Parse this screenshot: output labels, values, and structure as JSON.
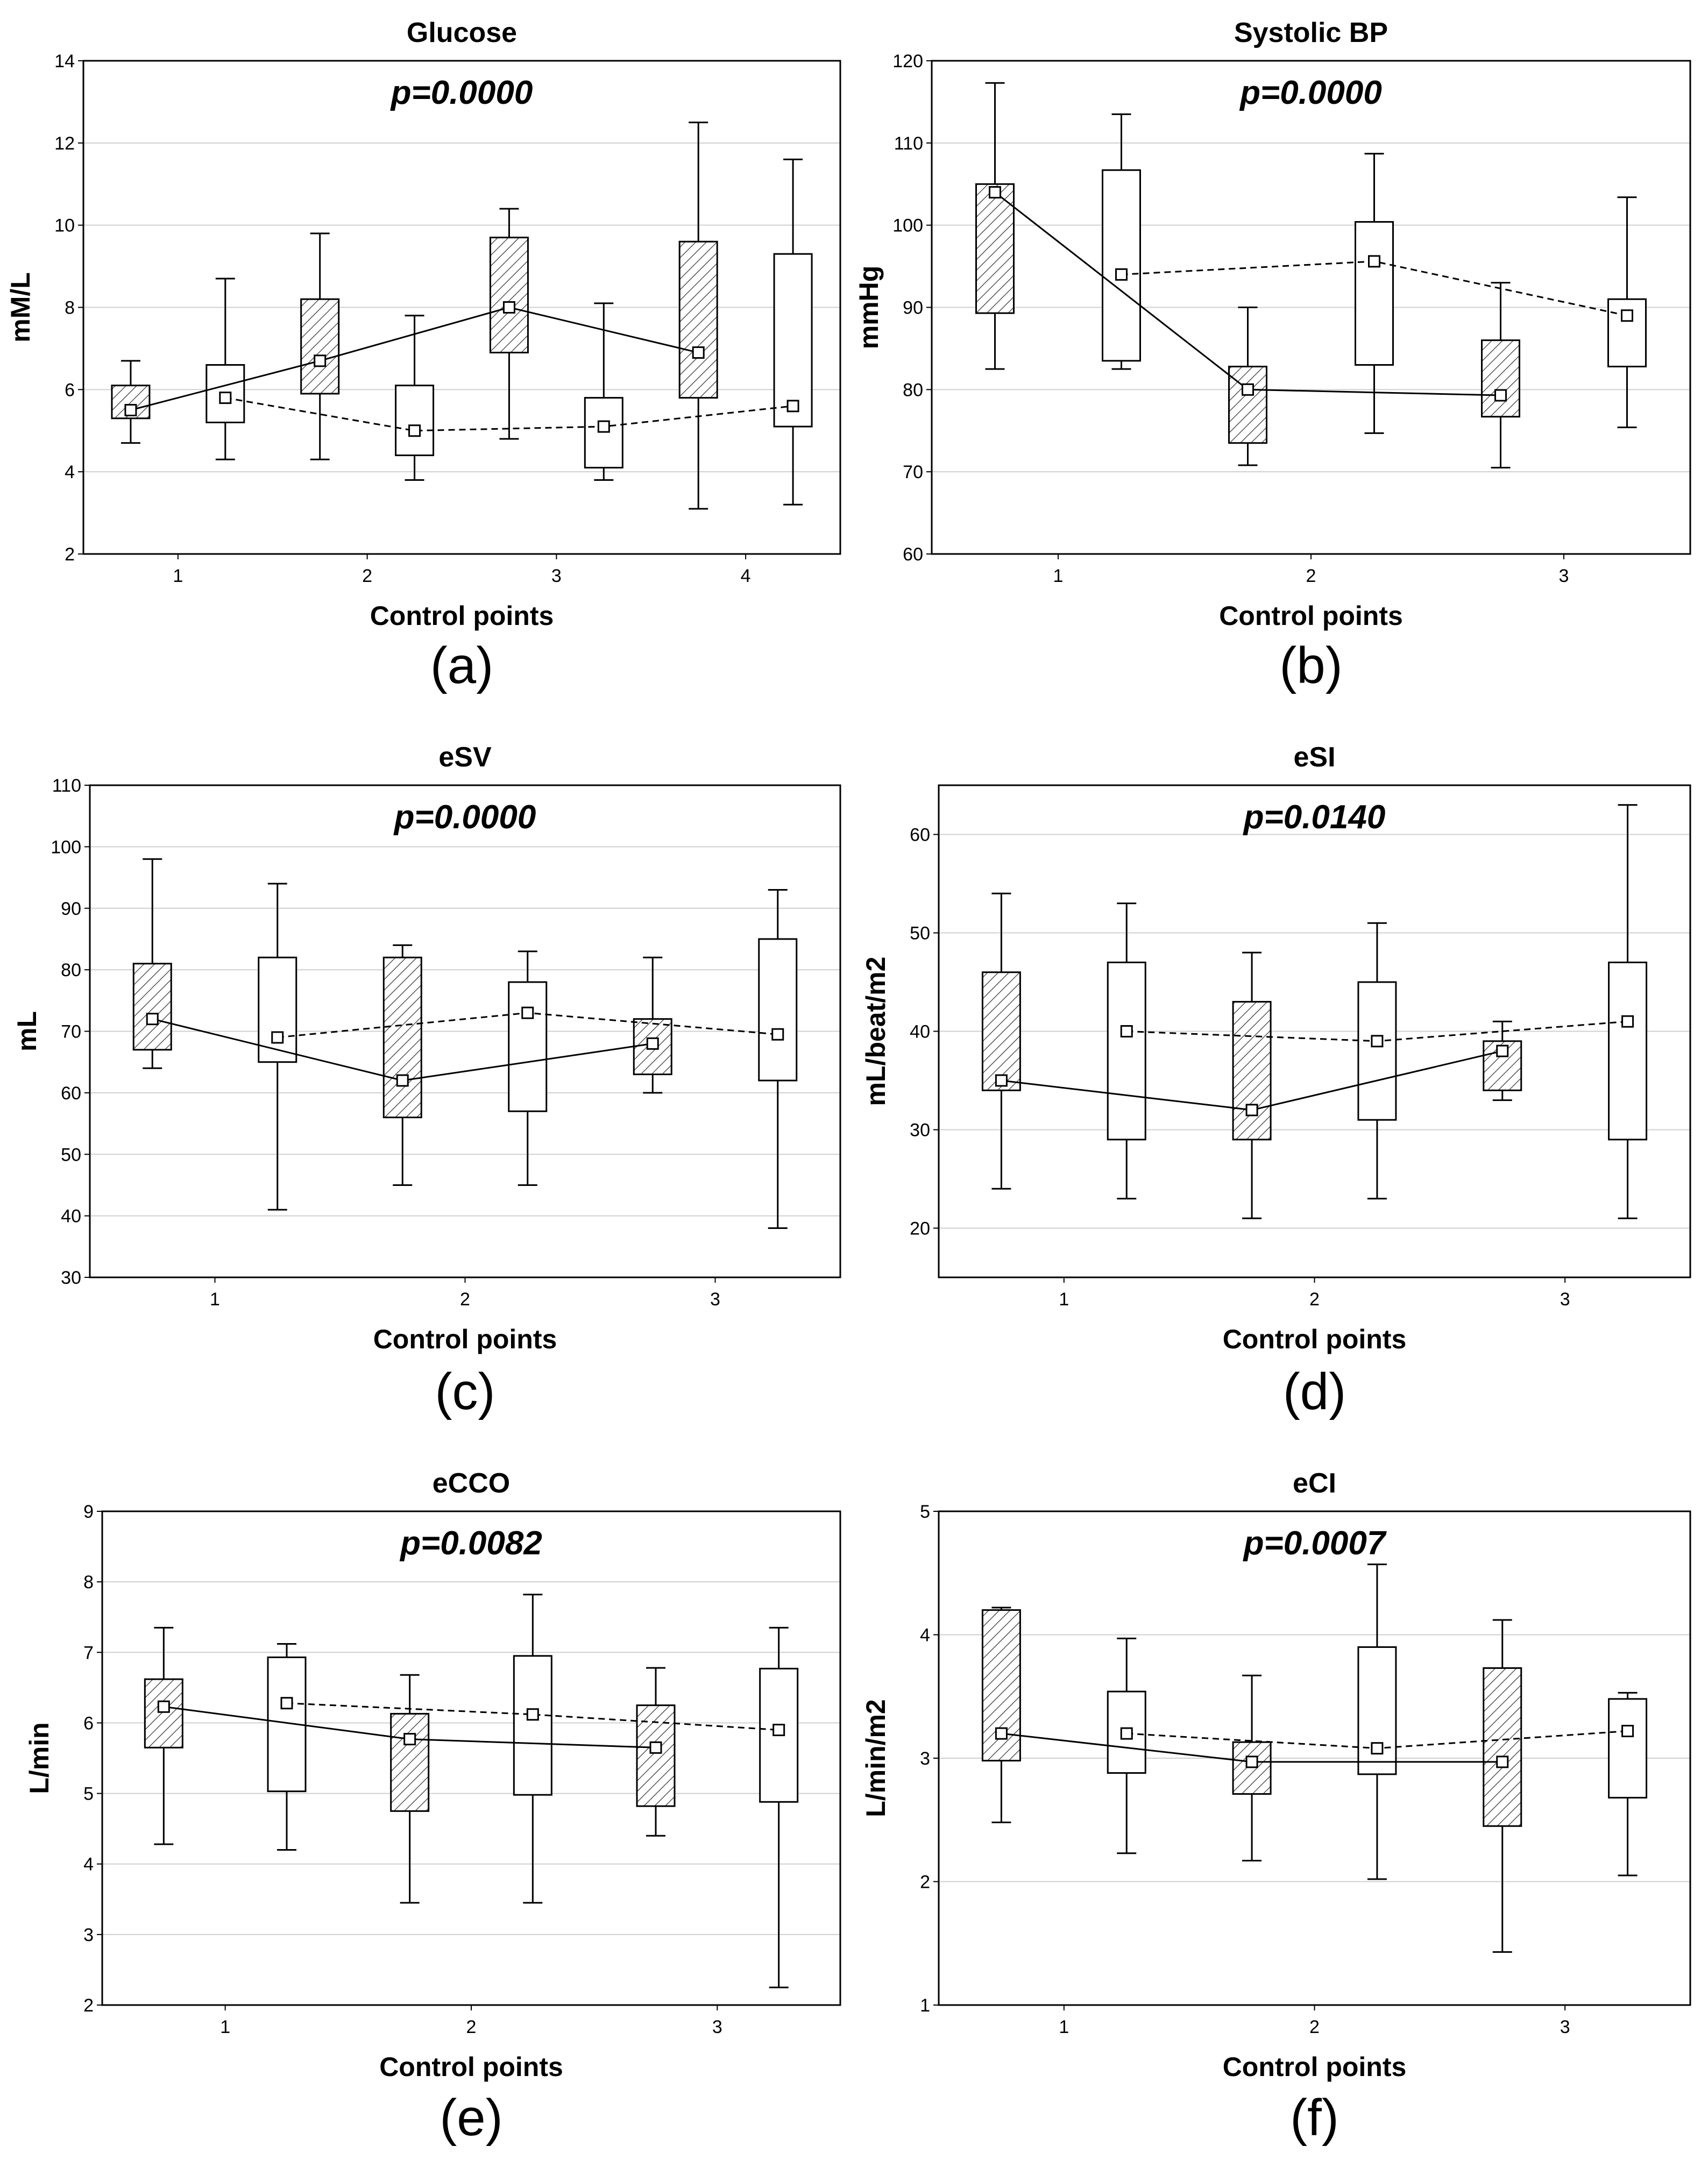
{
  "chart_data": [
    {
      "type": "box",
      "title": "Glucose",
      "annotation": "p=0.0000",
      "panel_label": "(a)",
      "xlabel": "Control points",
      "ylabel": "mM/L",
      "ylim": [
        2,
        14
      ],
      "yticks": [
        "2",
        "4",
        "6",
        "8",
        "10",
        "12",
        "14"
      ],
      "xlim": [
        0.5,
        4.5
      ],
      "xticks": [
        "1",
        "2",
        "3",
        "4"
      ],
      "series": [
        {
          "name": "hatched",
          "line": "solid",
          "x": [
            0.75,
            1.75,
            2.75,
            3.75
          ],
          "boxes": [
            {
              "whisker_low": 4.7,
              "q1": 5.3,
              "median": 5.5,
              "q3": 6.1,
              "whisker_high": 6.7
            },
            {
              "whisker_low": 4.3,
              "q1": 5.9,
              "median": 6.7,
              "q3": 8.2,
              "whisker_high": 9.8
            },
            {
              "whisker_low": 4.8,
              "q1": 6.9,
              "median": 8.0,
              "q3": 9.7,
              "whisker_high": 10.4
            },
            {
              "whisker_low": 3.1,
              "q1": 5.8,
              "median": 6.9,
              "q3": 9.6,
              "whisker_high": 12.5
            }
          ]
        },
        {
          "name": "open",
          "line": "dashed",
          "x": [
            1.25,
            2.25,
            3.25,
            4.25
          ],
          "boxes": [
            {
              "whisker_low": 4.3,
              "q1": 5.2,
              "median": 5.8,
              "q3": 6.6,
              "whisker_high": 8.7
            },
            {
              "whisker_low": 3.8,
              "q1": 4.4,
              "median": 5.0,
              "q3": 6.1,
              "whisker_high": 7.8
            },
            {
              "whisker_low": 3.8,
              "q1": 4.1,
              "median": 5.1,
              "q3": 5.8,
              "whisker_high": 8.1
            },
            {
              "whisker_low": 3.2,
              "q1": 5.1,
              "median": 5.6,
              "q3": 9.3,
              "whisker_high": 11.6
            }
          ]
        }
      ]
    },
    {
      "type": "box",
      "title": "Systolic BP",
      "annotation": "p=0.0000",
      "panel_label": "(b)",
      "xlabel": "Control points",
      "ylabel": "mmHg",
      "ylim": [
        60,
        120
      ],
      "yticks": [
        "60",
        "70",
        "80",
        "90",
        "100",
        "110",
        "120"
      ],
      "xlim": [
        0.5,
        3.5
      ],
      "xticks": [
        "1",
        "2",
        "3"
      ],
      "series": [
        {
          "name": "hatched",
          "line": "solid",
          "x": [
            0.75,
            1.75,
            2.75
          ],
          "boxes": [
            {
              "whisker_low": 82.5,
              "q1": 89.3,
              "median": 104,
              "q3": 105,
              "whisker_high": 117.3
            },
            {
              "whisker_low": 70.8,
              "q1": 73.5,
              "median": 80,
              "q3": 82.8,
              "whisker_high": 90
            },
            {
              "whisker_low": 70.5,
              "q1": 76.7,
              "median": 79.3,
              "q3": 86,
              "whisker_high": 93
            }
          ]
        },
        {
          "name": "open",
          "line": "dashed",
          "x": [
            1.25,
            2.25,
            3.25
          ],
          "boxes": [
            {
              "whisker_low": 82.5,
              "q1": 83.5,
              "median": 94,
              "q3": 106.7,
              "whisker_high": 113.5
            },
            {
              "whisker_low": 74.7,
              "q1": 83,
              "median": 95.6,
              "q3": 100.4,
              "whisker_high": 108.7
            },
            {
              "whisker_low": 75.4,
              "q1": 82.8,
              "median": 89,
              "q3": 91,
              "whisker_high": 103.4
            }
          ]
        }
      ]
    },
    {
      "type": "box",
      "title": "eSV",
      "annotation": "p=0.0000",
      "panel_label": "(c)",
      "xlabel": "Control points",
      "ylabel": "mL",
      "ylim": [
        30,
        110
      ],
      "yticks": [
        "30",
        "40",
        "50",
        "60",
        "70",
        "80",
        "90",
        "100",
        "110"
      ],
      "xlim": [
        0.5,
        3.5
      ],
      "xticks": [
        "1",
        "2",
        "3"
      ],
      "series": [
        {
          "name": "hatched",
          "line": "solid",
          "x": [
            0.75,
            1.75,
            2.75
          ],
          "boxes": [
            {
              "whisker_low": 64,
              "q1": 67,
              "median": 72,
              "q3": 81,
              "whisker_high": 98
            },
            {
              "whisker_low": 45,
              "q1": 56,
              "median": 62,
              "q3": 82,
              "whisker_high": 84
            },
            {
              "whisker_low": 60,
              "q1": 63,
              "median": 68,
              "q3": 72,
              "whisker_high": 82
            }
          ]
        },
        {
          "name": "open",
          "line": "dashed",
          "x": [
            1.25,
            2.25,
            3.25
          ],
          "boxes": [
            {
              "whisker_low": 41,
              "q1": 65,
              "median": 69,
              "q3": 82,
              "whisker_high": 94
            },
            {
              "whisker_low": 45,
              "q1": 57,
              "median": 73,
              "q3": 78,
              "whisker_high": 83
            },
            {
              "whisker_low": 38,
              "q1": 62,
              "median": 69.5,
              "q3": 85,
              "whisker_high": 93
            }
          ]
        }
      ]
    },
    {
      "type": "box",
      "title": "eSI",
      "annotation": "p=0.0140",
      "panel_label": "(d)",
      "xlabel": "Control points",
      "ylabel": "mL/beat/m2",
      "ylim": [
        15,
        65
      ],
      "yticks": [
        "20",
        "30",
        "40",
        "50",
        "60"
      ],
      "xlim": [
        0.5,
        3.5
      ],
      "xticks": [
        "1",
        "2",
        "3"
      ],
      "series": [
        {
          "name": "hatched",
          "line": "solid",
          "x": [
            0.75,
            1.75,
            2.75
          ],
          "boxes": [
            {
              "whisker_low": 24,
              "q1": 34,
              "median": 35,
              "q3": 46,
              "whisker_high": 54
            },
            {
              "whisker_low": 21,
              "q1": 29,
              "median": 32,
              "q3": 43,
              "whisker_high": 48
            },
            {
              "whisker_low": 33,
              "q1": 34,
              "median": 38,
              "q3": 39,
              "whisker_high": 41
            }
          ]
        },
        {
          "name": "open",
          "line": "dashed",
          "x": [
            1.25,
            2.25,
            3.25
          ],
          "boxes": [
            {
              "whisker_low": 23,
              "q1": 29,
              "median": 40,
              "q3": 47,
              "whisker_high": 53
            },
            {
              "whisker_low": 23,
              "q1": 31,
              "median": 39,
              "q3": 45,
              "whisker_high": 51
            },
            {
              "whisker_low": 21,
              "q1": 29,
              "median": 41,
              "q3": 47,
              "whisker_high": 63
            }
          ]
        }
      ]
    },
    {
      "type": "box",
      "title": "eCCO",
      "annotation": "p=0.0082",
      "panel_label": "(e)",
      "xlabel": "Control points",
      "ylabel": "L/min",
      "ylim": [
        2,
        9
      ],
      "yticks": [
        "2",
        "3",
        "4",
        "5",
        "6",
        "7",
        "8",
        "9"
      ],
      "xlim": [
        0.5,
        3.5
      ],
      "xticks": [
        "1",
        "2",
        "3"
      ],
      "series": [
        {
          "name": "hatched",
          "line": "solid",
          "x": [
            0.75,
            1.75,
            2.75
          ],
          "boxes": [
            {
              "whisker_low": 4.28,
              "q1": 5.65,
              "median": 6.23,
              "q3": 6.62,
              "whisker_high": 7.35
            },
            {
              "whisker_low": 3.45,
              "q1": 4.75,
              "median": 5.77,
              "q3": 6.13,
              "whisker_high": 6.68
            },
            {
              "whisker_low": 4.4,
              "q1": 4.82,
              "median": 5.65,
              "q3": 6.25,
              "whisker_high": 6.78
            }
          ]
        },
        {
          "name": "open",
          "line": "dashed",
          "x": [
            1.25,
            2.25,
            3.25
          ],
          "boxes": [
            {
              "whisker_low": 4.2,
              "q1": 5.03,
              "median": 6.28,
              "q3": 6.93,
              "whisker_high": 7.12
            },
            {
              "whisker_low": 3.45,
              "q1": 4.98,
              "median": 6.12,
              "q3": 6.95,
              "whisker_high": 7.82
            },
            {
              "whisker_low": 2.25,
              "q1": 4.88,
              "median": 5.9,
              "q3": 6.77,
              "whisker_high": 7.35
            }
          ]
        }
      ]
    },
    {
      "type": "box",
      "title": "eCI",
      "annotation": "p=0.0007",
      "panel_label": "(f)",
      "xlabel": "Control points",
      "ylabel": "L/min/m2",
      "ylim": [
        1,
        5
      ],
      "yticks": [
        "1",
        "2",
        "3",
        "4",
        "5"
      ],
      "xlim": [
        0.5,
        3.5
      ],
      "xticks": [
        "1",
        "2",
        "3"
      ],
      "series": [
        {
          "name": "hatched",
          "line": "solid",
          "x": [
            0.75,
            1.75,
            2.75
          ],
          "boxes": [
            {
              "whisker_low": 2.48,
              "q1": 2.98,
              "median": 3.2,
              "q3": 4.2,
              "whisker_high": 4.22
            },
            {
              "whisker_low": 2.17,
              "q1": 2.71,
              "median": 2.97,
              "q3": 3.13,
              "whisker_high": 3.67
            },
            {
              "whisker_low": 1.43,
              "q1": 2.45,
              "median": 2.97,
              "q3": 3.73,
              "whisker_high": 4.12
            }
          ]
        },
        {
          "name": "open",
          "line": "dashed",
          "x": [
            1.25,
            2.25,
            3.25
          ],
          "boxes": [
            {
              "whisker_low": 2.23,
              "q1": 2.88,
              "median": 3.2,
              "q3": 3.54,
              "whisker_high": 3.97
            },
            {
              "whisker_low": 2.02,
              "q1": 2.87,
              "median": 3.08,
              "q3": 3.9,
              "whisker_high": 4.57
            },
            {
              "whisker_low": 2.05,
              "q1": 2.68,
              "median": 3.22,
              "q3": 3.48,
              "whisker_high": 3.53
            }
          ]
        }
      ]
    }
  ]
}
